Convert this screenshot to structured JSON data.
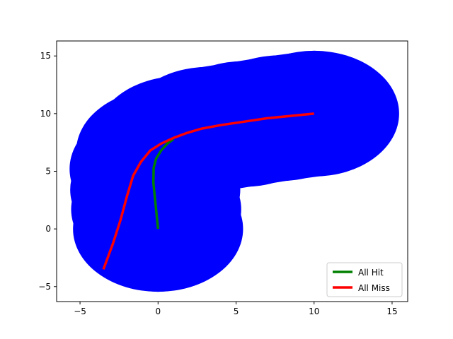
{
  "chart_data": {
    "type": "line",
    "title": "",
    "xlabel": "",
    "ylabel": "",
    "xlim": [
      -6.5,
      16.0
    ],
    "ylim": [
      -6.3,
      16.3
    ],
    "xticks": [
      -5,
      0,
      5,
      10,
      15
    ],
    "yticks": [
      -5,
      0,
      5,
      10,
      15
    ],
    "tick_labels": {
      "x": [
        "−5",
        "0",
        "5",
        "10",
        "15"
      ],
      "y": [
        "−5",
        "0",
        "5",
        "10",
        "15"
      ]
    },
    "grid": false,
    "legend_position": "lower right",
    "background_region": {
      "color": "#0000ff",
      "description": "blue filled tube around the trajectory",
      "centers": [
        [
          0.0,
          0.0
        ],
        [
          -0.12,
          1.7
        ],
        [
          -0.18,
          3.4
        ],
        [
          -0.22,
          5.2
        ],
        [
          0.2,
          6.7
        ],
        [
          1.4,
          7.8
        ],
        [
          3.2,
          8.6
        ],
        [
          5.5,
          9.1
        ],
        [
          7.8,
          9.6
        ],
        [
          10.0,
          10.0
        ]
      ],
      "radius_x": 5.45,
      "radius_y": 5.45
    },
    "series": [
      {
        "name": "All Hit",
        "color": "#008000",
        "x": [
          0.0,
          -0.15,
          -0.3,
          -0.28,
          -0.12,
          0.2,
          0.6,
          1.0
        ],
        "y": [
          0.0,
          2.0,
          4.0,
          5.3,
          6.1,
          6.8,
          7.4,
          7.8
        ]
      },
      {
        "name": "All Miss",
        "color": "#ff0000",
        "x": [
          -3.5,
          -2.9,
          -2.4,
          -2.0,
          -1.6,
          -1.1,
          -0.5,
          0.2,
          1.0,
          1.8,
          2.8,
          4.0,
          5.5,
          7.0,
          8.5,
          10.0
        ],
        "y": [
          -3.5,
          -1.3,
          0.8,
          2.8,
          4.6,
          5.8,
          6.8,
          7.4,
          7.9,
          8.3,
          8.7,
          9.0,
          9.3,
          9.6,
          9.8,
          10.0
        ]
      }
    ]
  }
}
